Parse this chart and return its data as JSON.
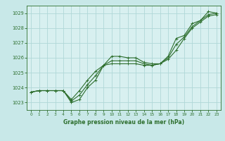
{
  "background_color": "#c8e8e8",
  "plot_bg_color": "#d8f0f0",
  "grid_color": "#b0d8d8",
  "line_color": "#2d6e2d",
  "title": "Graphe pression niveau de la mer (hPa)",
  "xlim": [
    -0.5,
    23.5
  ],
  "ylim": [
    1022.5,
    1029.5
  ],
  "yticks": [
    1023,
    1024,
    1025,
    1026,
    1027,
    1028,
    1029
  ],
  "xticks": [
    0,
    1,
    2,
    3,
    4,
    5,
    6,
    7,
    8,
    9,
    10,
    11,
    12,
    13,
    14,
    15,
    16,
    17,
    18,
    19,
    20,
    21,
    22,
    23
  ],
  "line1_x": [
    0,
    1,
    2,
    3,
    4,
    5,
    6,
    7,
    8,
    9,
    10,
    11,
    12,
    13,
    14,
    15,
    16,
    17,
    18,
    19,
    20,
    21,
    22,
    23
  ],
  "line1_y": [
    1023.7,
    1023.8,
    1023.8,
    1023.8,
    1023.8,
    1023.0,
    1023.2,
    1024.0,
    1024.5,
    1025.5,
    1026.1,
    1026.1,
    1026.0,
    1026.0,
    1025.7,
    1025.6,
    1025.6,
    1026.1,
    1027.3,
    1027.5,
    1028.3,
    1028.5,
    1029.1,
    1029.0
  ],
  "line2_x": [
    0,
    1,
    2,
    3,
    4,
    5,
    6,
    7,
    8,
    9,
    10,
    11,
    12,
    13,
    14,
    15,
    16,
    17,
    18,
    19,
    20,
    21,
    22,
    23
  ],
  "line2_y": [
    1023.7,
    1023.8,
    1023.8,
    1023.8,
    1023.8,
    1023.2,
    1023.8,
    1024.5,
    1025.1,
    1025.5,
    1025.6,
    1025.6,
    1025.6,
    1025.6,
    1025.5,
    1025.5,
    1025.6,
    1025.9,
    1026.5,
    1027.3,
    1028.0,
    1028.4,
    1028.8,
    1028.9
  ],
  "line3_x": [
    0,
    1,
    2,
    3,
    4,
    5,
    6,
    7,
    8,
    9,
    10,
    11,
    12,
    13,
    14,
    15,
    16,
    17,
    18,
    19,
    20,
    21,
    22,
    23
  ],
  "line3_y": [
    1023.7,
    1023.8,
    1023.8,
    1023.8,
    1023.8,
    1023.1,
    1023.5,
    1024.2,
    1024.8,
    1025.5,
    1025.8,
    1025.8,
    1025.8,
    1025.8,
    1025.6,
    1025.5,
    1025.6,
    1026.0,
    1026.9,
    1027.4,
    1028.1,
    1028.5,
    1028.9,
    1029.0
  ],
  "figsize": [
    3.2,
    2.0
  ],
  "dpi": 100
}
